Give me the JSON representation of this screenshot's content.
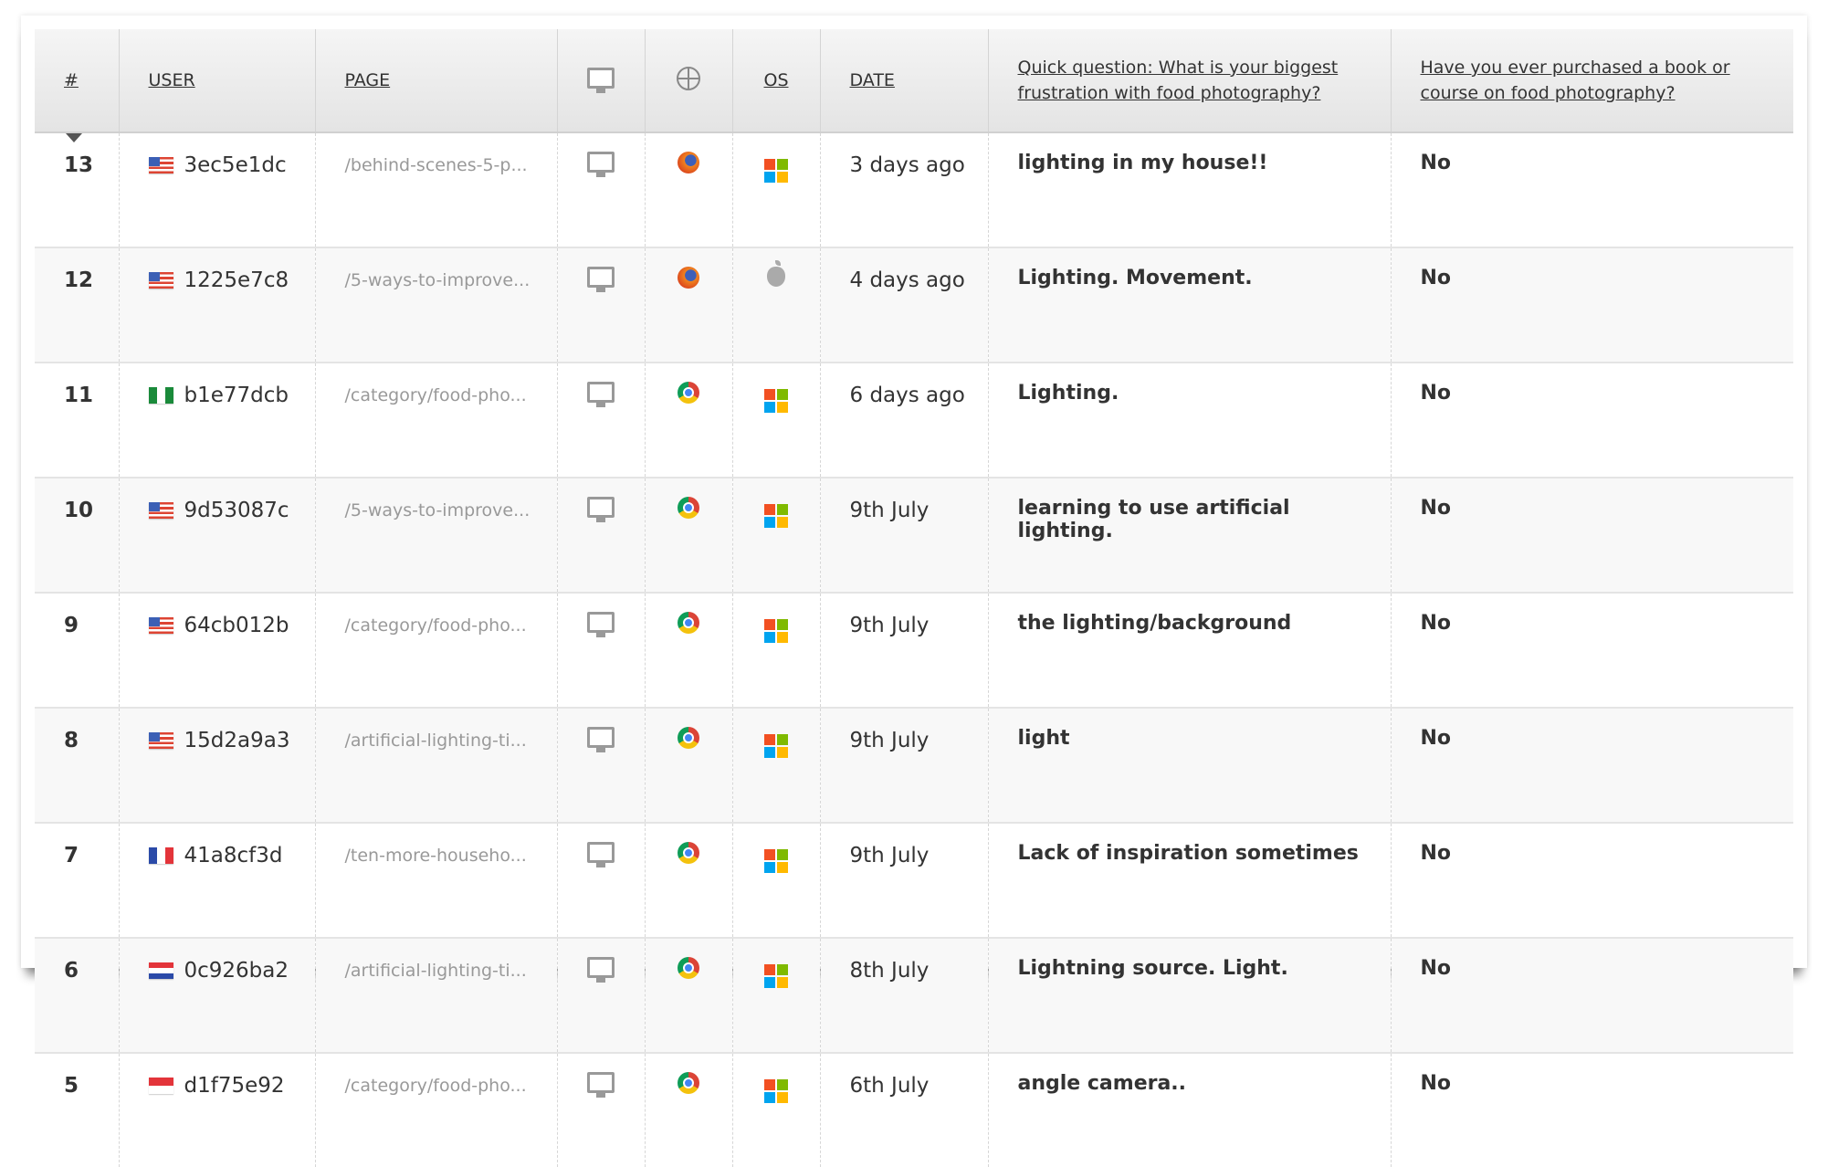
{
  "headers": {
    "num": "#",
    "user": "USER",
    "page": "PAGE",
    "device_icon": "monitor-icon",
    "browser_icon": "globe-icon",
    "os": "OS",
    "date": "DATE",
    "q1": "Quick question: What is your biggest frustration with food photography?",
    "q2": "Have you ever purchased a book or course on food photography?"
  },
  "rows": [
    {
      "num": "13",
      "flag": "us",
      "user": "3ec5e1dc",
      "page": "/behind-scenes-5-p...",
      "device": "desktop",
      "browser": "firefox",
      "os": "windows",
      "date": "3 days ago",
      "q1": "lighting in my house!!",
      "q2": "No"
    },
    {
      "num": "12",
      "flag": "us",
      "user": "1225e7c8",
      "page": "/5-ways-to-improve...",
      "device": "desktop",
      "browser": "firefox",
      "os": "apple",
      "date": "4 days ago",
      "q1": "Lighting. Movement.",
      "q2": "No"
    },
    {
      "num": "11",
      "flag": "ng",
      "user": "b1e77dcb",
      "page": "/category/food-pho...",
      "device": "desktop",
      "browser": "chrome",
      "os": "windows",
      "date": "6 days ago",
      "q1": "Lighting.",
      "q2": "No"
    },
    {
      "num": "10",
      "flag": "us",
      "user": "9d53087c",
      "page": "/5-ways-to-improve...",
      "device": "desktop",
      "browser": "chrome",
      "os": "windows",
      "date": "9th July",
      "q1": "learning to use artificial lighting.",
      "q2": "No"
    },
    {
      "num": "9",
      "flag": "us",
      "user": "64cb012b",
      "page": "/category/food-pho...",
      "device": "desktop",
      "browser": "chrome",
      "os": "windows",
      "date": "9th July",
      "q1": "the lighting/background",
      "q2": "No"
    },
    {
      "num": "8",
      "flag": "us",
      "user": "15d2a9a3",
      "page": "/artificial-lighting-ti...",
      "device": "desktop",
      "browser": "chrome",
      "os": "windows",
      "date": "9th July",
      "q1": "light",
      "q2": "No"
    },
    {
      "num": "7",
      "flag": "fr",
      "user": "41a8cf3d",
      "page": "/ten-more-househo...",
      "device": "desktop",
      "browser": "chrome",
      "os": "windows",
      "date": "9th July",
      "q1": "Lack of inspiration sometimes",
      "q2": "No"
    },
    {
      "num": "6",
      "flag": "hr",
      "user": "0c926ba2",
      "page": "/artificial-lighting-ti...",
      "device": "desktop",
      "browser": "chrome",
      "os": "windows",
      "date": "8th July",
      "q1": "Lightning source. Light.",
      "q2": "No"
    },
    {
      "num": "5",
      "flag": "id",
      "user": "d1f75e92",
      "page": "/category/food-pho...",
      "device": "desktop",
      "browser": "chrome",
      "os": "windows",
      "date": "6th July",
      "q1": "angle camera..",
      "q2": "No"
    }
  ]
}
